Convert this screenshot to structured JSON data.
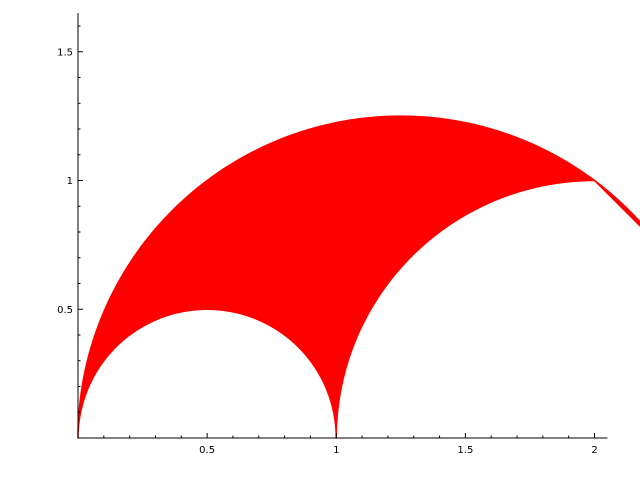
{
  "chart_data": {
    "type": "area",
    "xlim": [
      0,
      2.05
    ],
    "ylim": [
      0,
      1.65
    ],
    "grid": false,
    "x_ticks": [
      {
        "value": 0.5,
        "label": "0.5"
      },
      {
        "value": 1,
        "label": "1"
      },
      {
        "value": 1.5,
        "label": "1.5"
      },
      {
        "value": 2,
        "label": "2"
      }
    ],
    "y_ticks": [
      {
        "value": 0.5,
        "label": "0.5"
      },
      {
        "value": 1,
        "label": "1"
      },
      {
        "value": 1.5,
        "label": "1.5"
      }
    ],
    "x_minor_step": 0.1,
    "y_minor_step": 0.1,
    "region": {
      "fill": "#ff0000",
      "boundary": [
        {
          "kind": "arc",
          "center": [
            1.25,
            0
          ],
          "radius": 1.25,
          "from_deg": 180,
          "to_deg": 36.87,
          "direction": "clockwise"
        },
        {
          "kind": "arc",
          "center": [
            2,
            0
          ],
          "radius": 1,
          "from_deg": 90,
          "to_deg": 180,
          "direction": "counterclockwise"
        },
        {
          "kind": "arc",
          "center": [
            0.5,
            0
          ],
          "radius": 0.5,
          "from_deg": 0,
          "to_deg": 180,
          "direction": "counterclockwise"
        }
      ]
    }
  }
}
